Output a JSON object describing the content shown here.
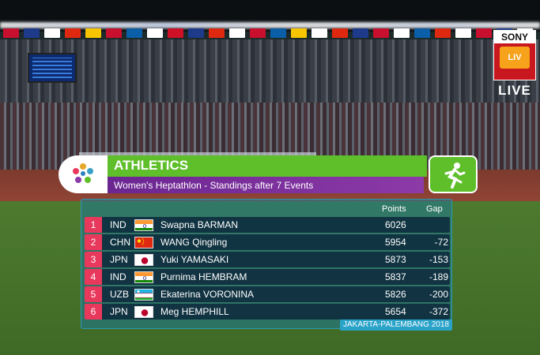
{
  "broadcaster": {
    "logo_top": "SONY",
    "logo_mid": "LIV",
    "logo_live": "LIVE"
  },
  "header": {
    "title": "ATHLETICS",
    "subtitle": "Women's Heptathlon - Standings after 7 Events",
    "sport_icon": "running-athlete-icon",
    "emblem_icon": "asian-games-emblem-icon"
  },
  "table": {
    "columns": {
      "points": "Points",
      "gap": "Gap"
    },
    "rows": [
      {
        "rank": "1",
        "country": "IND",
        "flag": "india",
        "name": "Swapna BARMAN",
        "points": "6026",
        "gap": ""
      },
      {
        "rank": "2",
        "country": "CHN",
        "flag": "china",
        "name": "WANG Qingling",
        "points": "5954",
        "gap": "-72"
      },
      {
        "rank": "3",
        "country": "JPN",
        "flag": "japan",
        "name": "Yuki YAMASAKI",
        "points": "5873",
        "gap": "-153"
      },
      {
        "rank": "4",
        "country": "IND",
        "flag": "india",
        "name": "Purnima HEMBRAM",
        "points": "5837",
        "gap": "-189"
      },
      {
        "rank": "5",
        "country": "UZB",
        "flag": "uzbekistan",
        "name": "Ekaterina VORONINA",
        "points": "5826",
        "gap": "-200"
      },
      {
        "rank": "6",
        "country": "JPN",
        "flag": "japan",
        "name": "Meg HEMPHILL",
        "points": "5654",
        "gap": "-372"
      }
    ]
  },
  "footer": {
    "tag": "JAKARTA-PALEMBANG 2018"
  },
  "colors": {
    "header_green": "#5fbf2b",
    "header_purple": "#6b2691",
    "rank_pink": "#e8385c",
    "footer_blue": "#2aa3c9"
  }
}
